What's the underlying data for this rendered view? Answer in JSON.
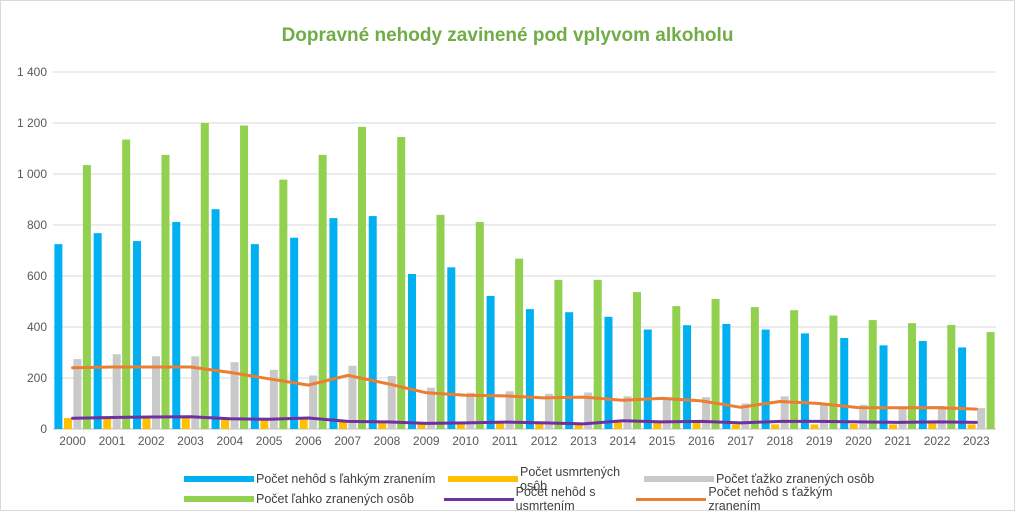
{
  "chart_data": {
    "type": "bar",
    "title": "Dopravné nehody zavinené pod vplyvom alkoholu",
    "categories": [
      "2000",
      "2001",
      "2002",
      "2003",
      "2004",
      "2005",
      "2006",
      "2007",
      "2008",
      "2009",
      "2010",
      "2011",
      "2012",
      "2013",
      "2014",
      "2015",
      "2016",
      "2017",
      "2018",
      "2019",
      "2020",
      "2021",
      "2022",
      "2023"
    ],
    "ylim": [
      0,
      1400
    ],
    "yticks": [
      "0",
      "200",
      "400",
      "600",
      "800",
      "1 000",
      "1 200",
      "1 400"
    ],
    "grid": true,
    "legend_position": "bottom",
    "series": [
      {
        "name": "Počet nehôd s ľahkým zranením",
        "type": "bar",
        "color": "#00b0f0",
        "values": [
          725,
          768,
          737,
          812,
          862,
          725,
          750,
          827,
          835,
          608,
          634,
          522,
          470,
          458,
          440,
          390,
          407,
          412,
          390,
          375,
          357,
          328,
          345,
          320
        ]
      },
      {
        "name": "Počet usmrtených osôb",
        "type": "bar",
        "color": "#ffc000",
        "values": [
          43,
          45,
          50,
          50,
          40,
          38,
          45,
          30,
          28,
          20,
          22,
          25,
          22,
          18,
          28,
          25,
          24,
          18,
          18,
          18,
          20,
          18,
          22,
          18
        ]
      },
      {
        "name": "Počet ťažko zranených osôb",
        "type": "bar",
        "color": "#c9c9c9",
        "values": [
          274,
          293,
          285,
          285,
          262,
          232,
          210,
          248,
          208,
          162,
          142,
          148,
          138,
          143,
          128,
          125,
          125,
          100,
          128,
          100,
          95,
          85,
          90,
          82
        ]
      },
      {
        "name": "Počet ľahko zranených osôb",
        "type": "bar",
        "color": "#92d050",
        "values": [
          1035,
          1135,
          1075,
          1200,
          1190,
          978,
          1075,
          1185,
          1145,
          840,
          812,
          668,
          585,
          585,
          537,
          482,
          510,
          478,
          466,
          445,
          427,
          415,
          408,
          380
        ]
      },
      {
        "name": "Počet nehôd  s usmrtením",
        "type": "line",
        "color": "#7030a0",
        "values": [
          42,
          45,
          47,
          48,
          40,
          38,
          43,
          30,
          28,
          22,
          24,
          27,
          24,
          20,
          32,
          28,
          30,
          24,
          30,
          30,
          28,
          26,
          28,
          26
        ]
      },
      {
        "name": "Počet nehôd s ťažkým zranením",
        "type": "line",
        "color": "#ed7d31",
        "values": [
          240,
          243,
          243,
          243,
          222,
          197,
          172,
          210,
          178,
          142,
          132,
          130,
          122,
          125,
          113,
          120,
          110,
          85,
          108,
          100,
          84,
          83,
          84,
          78
        ]
      }
    ]
  }
}
